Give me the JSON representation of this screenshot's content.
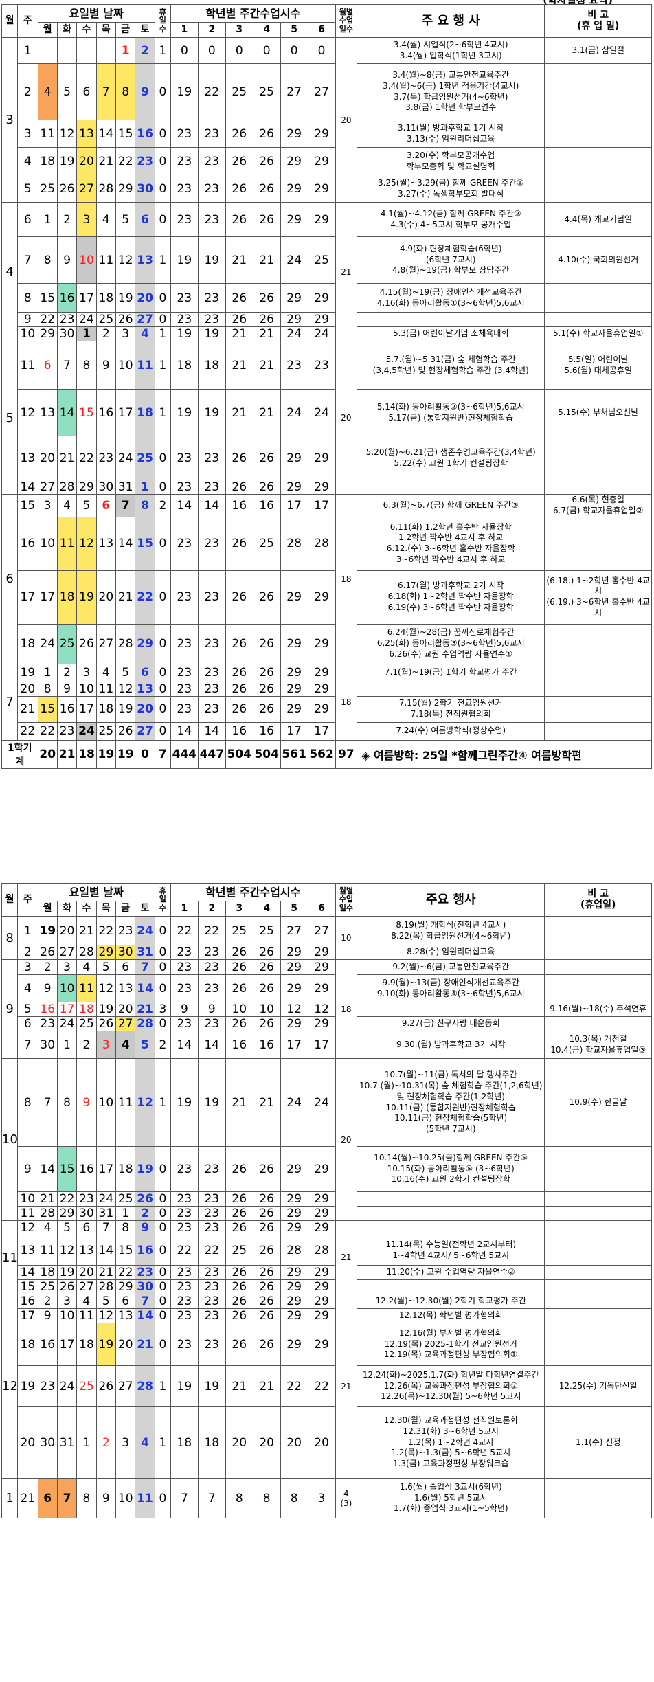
{
  "top_title_fragment": "(학사일정 요약)",
  "header1": {
    "month": "월",
    "week": "주",
    "dates": "요일별 날짜",
    "days": [
      "월",
      "화",
      "수",
      "목",
      "금",
      "토"
    ],
    "holiday": "휴\n일\n수",
    "hours": "학년별 주간수업시수",
    "grades": [
      "1",
      "2",
      "3",
      "4",
      "5",
      "6"
    ],
    "monthly": "월별\n수업\n일수",
    "events": "주 요 행 사",
    "note": "비 고\n(휴 업 일)"
  },
  "header2": {
    "month": "월",
    "week": "주",
    "dates": "요일별 날짜",
    "days": [
      "월",
      "화",
      "수",
      "목",
      "금",
      "토"
    ],
    "holiday": "휴\n일\n수",
    "hours": "학년별 주간수업시수",
    "grades": [
      "1",
      "2",
      "3",
      "4",
      "5",
      "6"
    ],
    "monthly": "월별\n수업\n일수",
    "events": "주요 행사",
    "note": "비 고\n(휴업일)"
  },
  "table1_rows": [
    {
      "month": "3",
      "week": "1",
      "dates": [
        "",
        "",
        "",
        "",
        "1",
        "2"
      ],
      "hol": "1",
      "hours": [
        "0",
        "0",
        "0",
        "0",
        "0",
        "0"
      ],
      "days": "20",
      "events": "3.4(월) 시업식(2~6학년 4교시)\n3.4(월) 입학식(1학년 3교시)",
      "note": "3.1(금) 삼일절"
    },
    {
      "week": "2",
      "dates": [
        "4",
        "5",
        "6",
        "7",
        "8",
        "9"
      ],
      "hol": "0",
      "hours": [
        "19",
        "22",
        "25",
        "25",
        "27",
        "27"
      ],
      "events": "3.4(월)~8(금) 교통안전교육주간\n3.4(월)~6(금) 1학년 적응기간(4교시)\n3.7(목) 학급임원선거(4~6학년)\n3.8(금) 1학년 학부모연수",
      "note": ""
    },
    {
      "week": "3",
      "dates": [
        "11",
        "12",
        "13",
        "14",
        "15",
        "16"
      ],
      "hol": "0",
      "hours": [
        "23",
        "23",
        "26",
        "26",
        "29",
        "29"
      ],
      "events": "3.11(월) 방과후학교 1기 시작\n3.13(수) 임원리더십교육",
      "note": ""
    },
    {
      "week": "4",
      "dates": [
        "18",
        "19",
        "20",
        "21",
        "22",
        "23"
      ],
      "hol": "0",
      "hours": [
        "23",
        "23",
        "26",
        "26",
        "29",
        "29"
      ],
      "events": "3.20(수) 학부모공개수업\n             학부모총회 및 학교설명회",
      "note": ""
    },
    {
      "week": "5",
      "dates": [
        "25",
        "26",
        "27",
        "28",
        "29",
        "30"
      ],
      "hol": "0",
      "hours": [
        "23",
        "23",
        "26",
        "26",
        "29",
        "29"
      ],
      "events": "3.25(월)~3.29(금) 함께 GREEN 주간①\n3.27(수) 녹색학부모회 발대식",
      "note": ""
    },
    {
      "month": "4",
      "week": "6",
      "dates": [
        "1",
        "2",
        "3",
        "4",
        "5",
        "6"
      ],
      "hol": "0",
      "hours": [
        "23",
        "23",
        "26",
        "26",
        "29",
        "29"
      ],
      "days": "21",
      "events": "4.1(월)~4.12(금) 함께 GREEN 주간②\n4.3(수) 4~5교시 학부모 공개수업",
      "note": "4.4(목) 개교기념일"
    },
    {
      "week": "7",
      "dates": [
        "8",
        "9",
        "10",
        "11",
        "12",
        "13"
      ],
      "hol": "1",
      "hours": [
        "19",
        "19",
        "21",
        "21",
        "24",
        "25"
      ],
      "events": "4.9(화) 현장체험학습(6학년)\n           (6학년 7교시)\n4.8(월)~19(금) 학부모 상담주간",
      "note": "4.10(수) 국회의원선거"
    },
    {
      "week": "8",
      "dates": [
        "15",
        "16",
        "17",
        "18",
        "19",
        "20"
      ],
      "hol": "0",
      "hours": [
        "23",
        "23",
        "26",
        "26",
        "29",
        "29"
      ],
      "events": "4.15(월)~19(금) 장애인식개선교육주간\n4.16(화) 동아리활동①(3~6학년)5,6교시",
      "note": ""
    },
    {
      "week": "9",
      "dates": [
        "22",
        "23",
        "24",
        "25",
        "26",
        "27"
      ],
      "hol": "0",
      "hours": [
        "23",
        "23",
        "26",
        "26",
        "29",
        "29"
      ],
      "events": "",
      "note": ""
    },
    {
      "week": "10",
      "dates": [
        "29",
        "30",
        "1",
        "2",
        "3",
        "4"
      ],
      "hol": "1",
      "hours": [
        "19",
        "19",
        "21",
        "21",
        "24",
        "24"
      ],
      "events": "5.3(금) 어린이날기념 소체육대회",
      "note": "5.1(수) 학교자율휴업일①"
    },
    {
      "month": "5",
      "week": "11",
      "dates": [
        "6",
        "7",
        "8",
        "9",
        "10",
        "11"
      ],
      "hol": "1",
      "hours": [
        "18",
        "18",
        "21",
        "21",
        "23",
        "23"
      ],
      "days": "20",
      "events": "5.7.(월)~5.31(금) 숲 체험학습 주간\n(3,4,5학년) 및 현장체험학습 주간 (3,4학년)",
      "note": "5.5(일) 어린이날\n5.6(월) 대체공휴일"
    },
    {
      "week": "12",
      "dates": [
        "13",
        "14",
        "15",
        "16",
        "17",
        "18"
      ],
      "hol": "1",
      "hours": [
        "19",
        "19",
        "21",
        "21",
        "24",
        "24"
      ],
      "events": "5.14(화) 동아리활동②(3~6학년)5,6교시\n5.17(금) (통합지원반)현장체험학습",
      "note": "5.15(수) 부처님오신날"
    },
    {
      "week": "13",
      "dates": [
        "20",
        "21",
        "22",
        "23",
        "24",
        "25"
      ],
      "hol": "0",
      "hours": [
        "23",
        "23",
        "26",
        "26",
        "29",
        "29"
      ],
      "events": "5.20(월)~6.21(금) 생존수영교육주간(3,4학년)\n5.22(수) 교원 1학기 컨설팅장학",
      "note": ""
    },
    {
      "week": "14",
      "dates": [
        "27",
        "28",
        "29",
        "30",
        "31",
        "1"
      ],
      "hol": "0",
      "hours": [
        "23",
        "23",
        "26",
        "26",
        "29",
        "29"
      ],
      "events": "",
      "note": ""
    },
    {
      "month": "6",
      "week": "15",
      "dates": [
        "3",
        "4",
        "5",
        "6",
        "7",
        "8"
      ],
      "hol": "2",
      "hours": [
        "14",
        "14",
        "16",
        "16",
        "17",
        "17"
      ],
      "days": "18",
      "events": "6.3(월)~6.7(금) 함께 GREEN 주간③",
      "note": "6.6(목) 현충일\n6.7(금) 학교자율휴업일②"
    },
    {
      "week": "16",
      "dates": [
        "10",
        "11",
        "12",
        "13",
        "14",
        "15"
      ],
      "hol": "0",
      "hours": [
        "23",
        "23",
        "26",
        "25",
        "28",
        "28"
      ],
      "events": "6.11(화) 1,2학년 홀수반 자율장학\n            1,2학년 짝수반 4교시 후 하교\n6.12.(수) 3~6학년 홀수반 자율장학\n            3~6학년 짝수반 4교시 후 하교",
      "note": ""
    },
    {
      "week": "17",
      "dates": [
        "17",
        "18",
        "19",
        "20",
        "21",
        "22"
      ],
      "hol": "0",
      "hours": [
        "23",
        "23",
        "26",
        "26",
        "29",
        "29"
      ],
      "events": "6.17(월) 방과후학교 2기 시작\n6.18(화) 1~2학년 짝수반 자율장학\n6.19(수) 3~6학년 짝수반 자율장학",
      "note": "(6.18.) 1~2학년 홀수반 4교시\n(6.19.) 3~6학년 홀수반 4교시"
    },
    {
      "week": "18",
      "dates": [
        "24",
        "25",
        "26",
        "27",
        "28",
        "29"
      ],
      "hol": "0",
      "hours": [
        "23",
        "23",
        "26",
        "26",
        "29",
        "29"
      ],
      "events": "6.24(월)~28(금) 꿈끼진로체험주간\n6.25(화) 동아리활동③(3~6학년)5,6교시\n6.26(수) 교원 수업역량 자율연수①",
      "note": ""
    },
    {
      "month": "7",
      "week": "19",
      "dates": [
        "1",
        "2",
        "3",
        "4",
        "5",
        "6"
      ],
      "hol": "0",
      "hours": [
        "23",
        "23",
        "26",
        "26",
        "29",
        "29"
      ],
      "days": "18",
      "events": "7.1(월)~19(금) 1학기 학교평가 주간",
      "note": ""
    },
    {
      "week": "20",
      "dates": [
        "8",
        "9",
        "10",
        "11",
        "12",
        "13"
      ],
      "hol": "0",
      "hours": [
        "23",
        "23",
        "26",
        "26",
        "29",
        "29"
      ],
      "events": "",
      "note": ""
    },
    {
      "week": "21",
      "dates": [
        "15",
        "16",
        "17",
        "18",
        "19",
        "20"
      ],
      "hol": "0",
      "hours": [
        "23",
        "23",
        "26",
        "26",
        "29",
        "29"
      ],
      "events": "7.15(월) 2학기 전교임원선거\n7.18(목) 전직원협의회",
      "note": ""
    },
    {
      "week": "22",
      "dates": [
        "22",
        "23",
        "24",
        "25",
        "26",
        "27"
      ],
      "hol": "0",
      "hours": [
        "14",
        "14",
        "16",
        "16",
        "17",
        "17"
      ],
      "events": "7.24(수) 여름방학식(정상수업)",
      "note": ""
    }
  ],
  "total": {
    "label": "1학기 계",
    "values": [
      "20",
      "21",
      "18",
      "19",
      "19",
      "0",
      "7",
      "444",
      "447",
      "504",
      "504",
      "561",
      "562",
      "97"
    ],
    "summary": "◈ 여름방학: 25일 *함께그린주간④ 여름방학편"
  },
  "table2_rows": [
    {
      "month": "8",
      "week": "1",
      "dates": [
        "19",
        "20",
        "21",
        "22",
        "23",
        "24"
      ],
      "hol": "0",
      "hours": [
        "22",
        "22",
        "25",
        "25",
        "27",
        "27"
      ],
      "days": "10",
      "events": "8.19(월) 개학식(전학년 4교시)\n8.22(목) 학급임원선거(4~6학년)",
      "note": ""
    },
    {
      "week": "2",
      "dates": [
        "26",
        "27",
        "28",
        "29",
        "30",
        "31"
      ],
      "hol": "0",
      "hours": [
        "23",
        "23",
        "26",
        "26",
        "29",
        "29"
      ],
      "events": "8.28(수) 임원리더십교육",
      "note": ""
    },
    {
      "month": "9",
      "week": "3",
      "dates": [
        "2",
        "3",
        "4",
        "5",
        "6",
        "7"
      ],
      "hol": "0",
      "hours": [
        "23",
        "23",
        "26",
        "26",
        "29",
        "29"
      ],
      "days": "18",
      "events": "9.2(월)~6(금) 교통안전교육주간",
      "note": ""
    },
    {
      "week": "4",
      "dates": [
        "9",
        "10",
        "11",
        "12",
        "13",
        "14"
      ],
      "hol": "0",
      "hours": [
        "23",
        "23",
        "26",
        "26",
        "29",
        "29"
      ],
      "events": "9.9(월)~13(금) 장애인식개선교육주간\n9.10(화) 동아리활동④(3~6학년)5,6교시",
      "note": ""
    },
    {
      "week": "5",
      "dates": [
        "16",
        "17",
        "18",
        "19",
        "20",
        "21"
      ],
      "hol": "3",
      "hours": [
        "9",
        "9",
        "10",
        "10",
        "12",
        "12"
      ],
      "events": "",
      "note": "9.16(월)~18(수) 추석연휴"
    },
    {
      "week": "6",
      "dates": [
        "23",
        "24",
        "25",
        "26",
        "27",
        "28"
      ],
      "hol": "0",
      "hours": [
        "23",
        "23",
        "26",
        "26",
        "29",
        "29"
      ],
      "events": "9.27(금) 친구사랑 대운동회",
      "note": ""
    },
    {
      "week": "7",
      "dates": [
        "30",
        "1",
        "2",
        "3",
        "4",
        "5"
      ],
      "hol": "2",
      "hours": [
        "14",
        "14",
        "16",
        "16",
        "17",
        "17"
      ],
      "events": "9.30.(월) 방과후학교 3기 시작",
      "note": "10.3(목) 개천절\n10.4(금) 학교자율휴업일③"
    },
    {
      "month": "10",
      "week": "8",
      "dates": [
        "7",
        "8",
        "9",
        "10",
        "11",
        "12"
      ],
      "hol": "1",
      "hours": [
        "19",
        "19",
        "21",
        "21",
        "24",
        "24"
      ],
      "days": "20",
      "events": "10.7(월)~11(금) 독서의 달 행사주간\n10.7.(월)~10.31(목) 숲 체험학습 주간(1,2,6학년)\n및 현장체험학습 주간(1,2학년)\n10.11(금) (통합지원반)현장체험학습\n10.11(금) 현장체험학습(5학년)\n             (5학년 7교시)",
      "note": "10.9(수) 한글날"
    },
    {
      "week": "9",
      "dates": [
        "14",
        "15",
        "16",
        "17",
        "18",
        "19"
      ],
      "hol": "0",
      "hours": [
        "23",
        "23",
        "26",
        "26",
        "29",
        "29"
      ],
      "events": "10.14(월)~10.25(금)함께 GREEN 주간⑤\n10.15(화) 동아리활동⑤ (3~6학년)\n10.16(수) 교원 2학기 컨설팅장학",
      "note": ""
    },
    {
      "week": "10",
      "dates": [
        "21",
        "22",
        "23",
        "24",
        "25",
        "26"
      ],
      "hol": "0",
      "hours": [
        "23",
        "23",
        "26",
        "26",
        "29",
        "29"
      ],
      "events": "",
      "note": ""
    },
    {
      "week": "11",
      "dates": [
        "28",
        "29",
        "30",
        "31",
        "1",
        "2"
      ],
      "hol": "0",
      "hours": [
        "23",
        "23",
        "26",
        "26",
        "29",
        "29"
      ],
      "events": "",
      "note": ""
    },
    {
      "month": "11",
      "week": "12",
      "dates": [
        "4",
        "5",
        "6",
        "7",
        "8",
        "9"
      ],
      "hol": "0",
      "hours": [
        "23",
        "23",
        "26",
        "26",
        "29",
        "29"
      ],
      "days": "21",
      "events": "",
      "note": ""
    },
    {
      "week": "13",
      "dates": [
        "11",
        "12",
        "13",
        "14",
        "15",
        "16"
      ],
      "hol": "0",
      "hours": [
        "22",
        "22",
        "25",
        "26",
        "28",
        "28"
      ],
      "events": "11.14(목) 수능일(전학년 2교시부터)\n       1~4학년 4교시/ 5~6학년 5교시",
      "note": ""
    },
    {
      "week": "14",
      "dates": [
        "18",
        "19",
        "20",
        "21",
        "22",
        "23"
      ],
      "hol": "0",
      "hours": [
        "23",
        "23",
        "26",
        "26",
        "29",
        "29"
      ],
      "events": "11.20(수) 교원 수업역량 자율연수②",
      "note": ""
    },
    {
      "week": "15",
      "dates": [
        "25",
        "26",
        "27",
        "28",
        "29",
        "30"
      ],
      "hol": "0",
      "hours": [
        "23",
        "23",
        "26",
        "26",
        "29",
        "29"
      ],
      "events": "",
      "note": ""
    },
    {
      "month": "12",
      "week": "16",
      "dates": [
        "2",
        "3",
        "4",
        "5",
        "6",
        "7"
      ],
      "hol": "0",
      "hours": [
        "23",
        "23",
        "26",
        "26",
        "29",
        "29"
      ],
      "days": "21",
      "events": "12.2(월)~12.30(월) 2학기 학교평가 주간",
      "note": ""
    },
    {
      "week": "17",
      "dates": [
        "9",
        "10",
        "11",
        "12",
        "13",
        "14"
      ],
      "hol": "0",
      "hours": [
        "23",
        "23",
        "26",
        "26",
        "29",
        "29"
      ],
      "events": "12.12(목) 학년별 평가협의회",
      "note": ""
    },
    {
      "week": "18",
      "dates": [
        "16",
        "17",
        "18",
        "19",
        "20",
        "21"
      ],
      "hol": "0",
      "hours": [
        "23",
        "23",
        "26",
        "26",
        "29",
        "29"
      ],
      "events": "12.16(월) 부서별 평가협의회\n12.19(목) 2025-1학기 전교임원선거\n12.19(목) 교육과정편성 부장협의회①",
      "note": ""
    },
    {
      "week": "19",
      "dates": [
        "23",
        "24",
        "25",
        "26",
        "27",
        "28"
      ],
      "hol": "1",
      "hours": [
        "19",
        "19",
        "21",
        "21",
        "22",
        "22"
      ],
      "events": "12.24(화)~2025.1.7(화) 학년말 다학년연결주간\n12.26(목) 교육과정편성 부장협의회②\n12.26(목)~12.30(월) 5~6학년 5교시",
      "note": "12.25(수) 기독탄신일"
    },
    {
      "week": "20",
      "dates": [
        "30",
        "31",
        "1",
        "2",
        "3",
        "4"
      ],
      "hol": "1",
      "hours": [
        "18",
        "18",
        "20",
        "20",
        "20",
        "20"
      ],
      "events": "12.30(월) 교육과정편성 전직원토론회\n12.31(화) 3~6학년 5교시\n1.2(목) 1~2학년 4교시\n1.2(목)~1.3(금) 5~6학년 5교시\n1.3(금) 교육과정편성 부장워크숍",
      "note": "1.1(수) 신정"
    },
    {
      "month": "1",
      "week": "21",
      "dates": [
        "6",
        "7",
        "8",
        "9",
        "10",
        "11"
      ],
      "hol": "0",
      "hours": [
        "7",
        "7",
        "8",
        "8",
        "8",
        "3"
      ],
      "days": "4\n(3)",
      "events": "1.6(월) 졸업식 3교시(6학년)\n1.6(월) 5학년 5교시\n1.7(화) 종업식 3교시(1~5학년)",
      "note": ""
    }
  ]
}
